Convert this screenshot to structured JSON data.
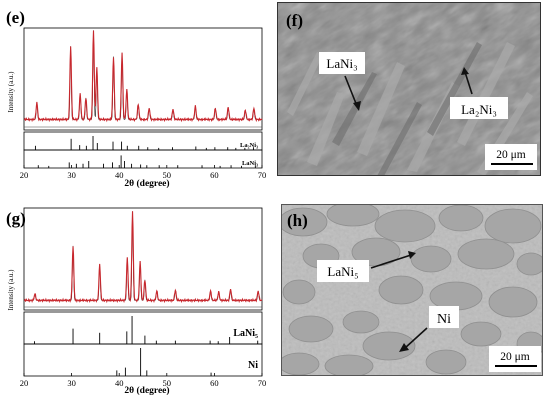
{
  "panels": {
    "e": {
      "label": "(e)",
      "ylabel": "Intensity (a.u.)",
      "xlabel": "2θ (degree)",
      "refs": [
        "La₂Ni₃",
        "LaNi₃"
      ]
    },
    "f": {
      "label": "(f)",
      "annotations": [
        "LaNi₃",
        "La₂Ni₃"
      ],
      "scale_bar": "20 μm"
    },
    "g": {
      "label": "(g)",
      "ylabel": "Intensity (a.u.)",
      "xlabel": "2θ (degree)",
      "refs": [
        "LaNi₅",
        "Ni"
      ]
    },
    "h": {
      "label": "(h)",
      "annotations": [
        "LaNi₅",
        "Ni"
      ],
      "scale_bar": "20 μm"
    }
  },
  "chart_data": [
    {
      "type": "line",
      "panel": "e",
      "xlabel": "2θ (degree)",
      "ylabel": "Intensity (a.u.)",
      "xlim": [
        20,
        70
      ],
      "xticks": [
        20,
        30,
        40,
        50,
        60,
        70
      ],
      "background": 0.07,
      "peaks": [
        {
          "x": 22.7,
          "h": 0.18
        },
        {
          "x": 29.8,
          "h": 0.78
        },
        {
          "x": 31.8,
          "h": 0.27
        },
        {
          "x": 33.0,
          "h": 0.23
        },
        {
          "x": 34.6,
          "h": 0.95
        },
        {
          "x": 35.3,
          "h": 0.55
        },
        {
          "x": 38.8,
          "h": 0.67
        },
        {
          "x": 40.6,
          "h": 0.71
        },
        {
          "x": 41.6,
          "h": 0.32
        },
        {
          "x": 44.0,
          "h": 0.16
        },
        {
          "x": 46.3,
          "h": 0.12
        },
        {
          "x": 51.3,
          "h": 0.11
        },
        {
          "x": 56.0,
          "h": 0.14
        },
        {
          "x": 60.2,
          "h": 0.12
        },
        {
          "x": 62.9,
          "h": 0.13
        },
        {
          "x": 66.5,
          "h": 0.1
        },
        {
          "x": 68.3,
          "h": 0.12
        }
      ],
      "references": [
        {
          "name": "La₂Ni₃",
          "lines": [
            22.4,
            29.9,
            31.7,
            33.1,
            34.5,
            35.4,
            38.7,
            40.5,
            41.7,
            44.1,
            46.0,
            48.3,
            51.2,
            56.1,
            58.3,
            60.1,
            62.8,
            64.5,
            66.4,
            68.2
          ],
          "heights": [
            0.3,
            0.8,
            0.35,
            0.3,
            1.0,
            0.5,
            0.6,
            0.6,
            0.3,
            0.3,
            0.2,
            0.15,
            0.2,
            0.25,
            0.15,
            0.2,
            0.2,
            0.15,
            0.15,
            0.2
          ]
        },
        {
          "name": "LaNi₃",
          "lines": [
            23.0,
            25.2,
            29.5,
            31.0,
            32.4,
            33.6,
            36.7,
            38.6,
            40.4,
            41.1,
            42.6,
            44.5,
            45.8,
            48.4,
            52.3,
            57.4,
            61.2,
            63.5,
            65.7,
            68.6
          ],
          "heights": [
            0.2,
            0.15,
            0.4,
            0.3,
            0.3,
            0.5,
            0.3,
            0.4,
            0.9,
            0.5,
            0.3,
            0.25,
            0.2,
            0.2,
            0.2,
            0.2,
            0.15,
            0.2,
            0.15,
            0.2
          ]
        }
      ]
    },
    {
      "type": "line",
      "panel": "g",
      "xlabel": "2θ (degree)",
      "ylabel": "Intensity (a.u.)",
      "xlim": [
        20,
        70
      ],
      "xticks": [
        20,
        30,
        40,
        50,
        60,
        70
      ],
      "background": 0.06,
      "peaks": [
        {
          "x": 22.3,
          "h": 0.07
        },
        {
          "x": 30.3,
          "h": 0.58
        },
        {
          "x": 35.9,
          "h": 0.38
        },
        {
          "x": 41.7,
          "h": 0.45
        },
        {
          "x": 42.8,
          "h": 0.95
        },
        {
          "x": 44.4,
          "h": 0.41
        },
        {
          "x": 45.4,
          "h": 0.22
        },
        {
          "x": 47.9,
          "h": 0.1
        },
        {
          "x": 51.8,
          "h": 0.11
        },
        {
          "x": 59.2,
          "h": 0.1
        },
        {
          "x": 60.9,
          "h": 0.09
        },
        {
          "x": 63.4,
          "h": 0.12
        },
        {
          "x": 69.2,
          "h": 0.1
        }
      ],
      "references": [
        {
          "name": "LaNi₅",
          "lines": [
            22.2,
            30.3,
            35.9,
            41.6,
            42.7,
            45.4,
            47.8,
            51.8,
            59.1,
            60.8,
            63.2,
            69.1
          ],
          "heights": [
            0.1,
            0.55,
            0.4,
            0.45,
            1.0,
            0.3,
            0.12,
            0.12,
            0.12,
            0.1,
            0.25,
            0.12
          ]
        },
        {
          "name": "Ni",
          "lines": [
            39.5,
            41.3,
            44.5,
            45.8,
            59.3
          ],
          "heights": [
            0.2,
            0.3,
            1.0,
            0.2,
            0.12
          ]
        }
      ]
    }
  ]
}
